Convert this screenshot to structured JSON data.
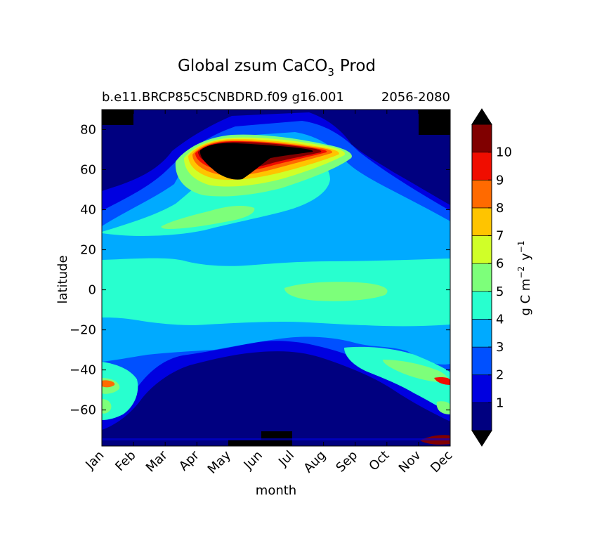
{
  "chart_data": {
    "type": "heatmap",
    "title_main": "Global zsum CaCO",
    "title_sub": "3",
    "title_tail": "Prod",
    "subtitle_left": "b.e11.BRCP85C5CNBDRD.f09 g16.001",
    "subtitle_right": "2056-2080",
    "xlabel": "month",
    "ylabel": "latitude",
    "xtick_labels": [
      "Jan",
      "Feb",
      "Mar",
      "Apr",
      "May",
      "Jun",
      "Jul",
      "Aug",
      "Sep",
      "Oct",
      "Nov",
      "Dec"
    ],
    "ytick_values": [
      80,
      60,
      40,
      20,
      0,
      -20,
      -40,
      -60
    ],
    "ytick_labels": [
      "80",
      "60",
      "40",
      "20",
      "0",
      "−20",
      "−40",
      "−60"
    ],
    "ylim": [
      -78,
      90
    ],
    "colorbar": {
      "label_main": "g C m",
      "label_exp1": "−2",
      "label_mid": "y",
      "label_exp2": "−1",
      "tick_labels": [
        "1",
        "2",
        "3",
        "4",
        "5",
        "6",
        "7",
        "8",
        "9",
        "10"
      ],
      "levels": [
        0,
        1,
        2,
        3,
        4,
        5,
        6,
        7,
        8,
        9,
        10,
        11
      ],
      "colors": [
        "#000080",
        "#0000e0",
        "#0050ff",
        "#00aaff",
        "#28ffcf",
        "#7dff7a",
        "#d0ff28",
        "#ffc400",
        "#ff6a00",
        "#f00d00",
        "#800000"
      ],
      "extend": "both",
      "over_color": "#000000",
      "under_color": "#000000"
    },
    "field_description": "Monthly climatology of vertically integrated CaCO3 production vs latitude; maximum (>11) near 60-70N in May-Jul, band of 5-6 near 40N spring and equator Jul-Sep, 6-9 near 45-60S Jan and Dec."
  }
}
